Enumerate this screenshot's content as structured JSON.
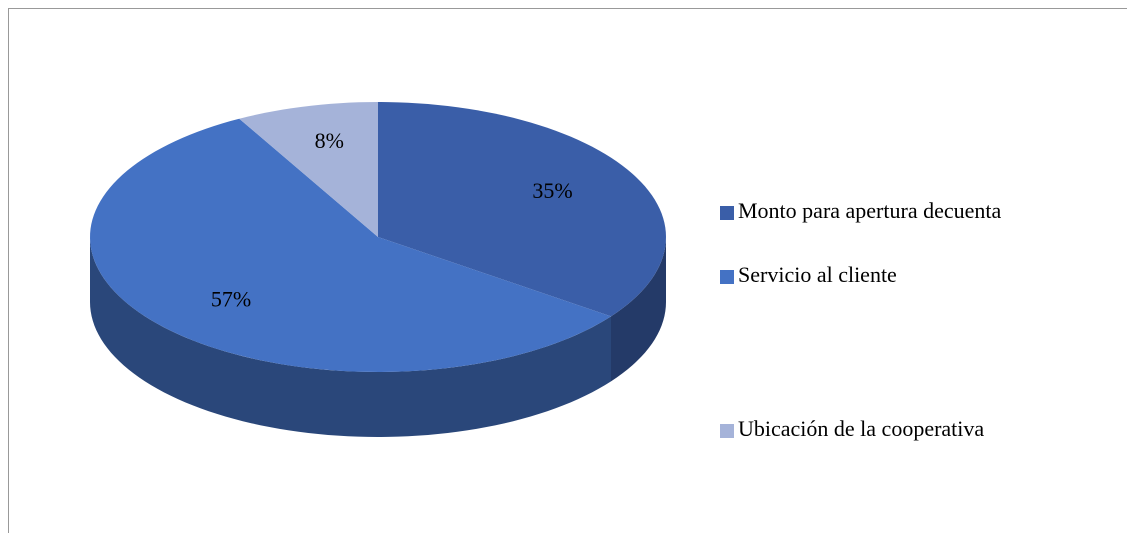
{
  "chart_data": {
    "type": "pie",
    "categories": [
      "Monto para apertura decuenta",
      "Servicio al cliente",
      "Ubicación de la cooperativa"
    ],
    "values": [
      35,
      57,
      8
    ],
    "value_labels": [
      "35%",
      "57%",
      "8%"
    ],
    "colors": [
      "#3a5ea8",
      "#4472c4",
      "#a5b3d9"
    ],
    "legend": "right"
  }
}
